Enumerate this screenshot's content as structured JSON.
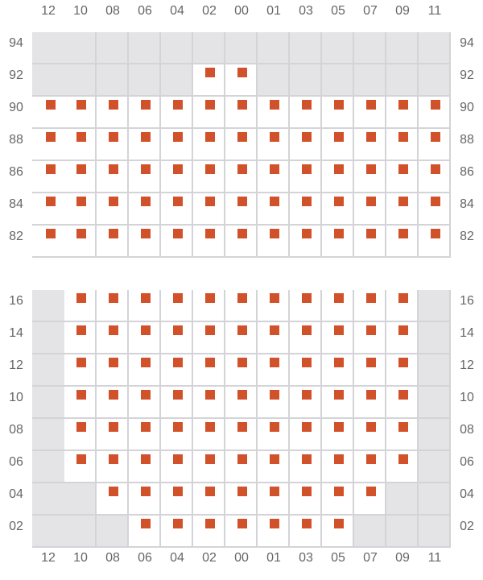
{
  "columns": [
    "12",
    "10",
    "08",
    "06",
    "04",
    "02",
    "00",
    "01",
    "03",
    "05",
    "07",
    "09",
    "11"
  ],
  "colors": {
    "seat_marker": "#d1512a",
    "unavailable": "#e4e4e7",
    "available": "#ffffff",
    "grid_line": "#d4d4d8",
    "label_text": "#666666"
  },
  "legend_codes": {
    "A": "available seat",
    "X": "unavailable"
  },
  "sections": [
    {
      "name": "upper",
      "rows": [
        {
          "label": "94",
          "cells": "XXXXXXXXXXXXX"
        },
        {
          "label": "92",
          "cells": "XXXXXAAXXXXXX"
        },
        {
          "label": "90",
          "cells": "AAAAAAAAAAAAA"
        },
        {
          "label": "88",
          "cells": "AAAAAAAAAAAAA"
        },
        {
          "label": "86",
          "cells": "AAAAAAAAAAAAA"
        },
        {
          "label": "84",
          "cells": "AAAAAAAAAAAAA"
        },
        {
          "label": "82",
          "cells": "AAAAAAAAAAAAA"
        }
      ]
    },
    {
      "name": "lower",
      "rows": [
        {
          "label": "16",
          "cells": "XAAAAAAAAAAAX"
        },
        {
          "label": "14",
          "cells": "XAAAAAAAAAAAX"
        },
        {
          "label": "12",
          "cells": "XAAAAAAAAAAAX"
        },
        {
          "label": "10",
          "cells": "XAAAAAAAAAAAX"
        },
        {
          "label": "08",
          "cells": "XAAAAAAAAAAAX"
        },
        {
          "label": "06",
          "cells": "XAAAAAAAAAAAX"
        },
        {
          "label": "04",
          "cells": "XXAAAAAAAAAXX"
        },
        {
          "label": "02",
          "cells": "XXXAAAAAAAXXX"
        }
      ]
    }
  ]
}
